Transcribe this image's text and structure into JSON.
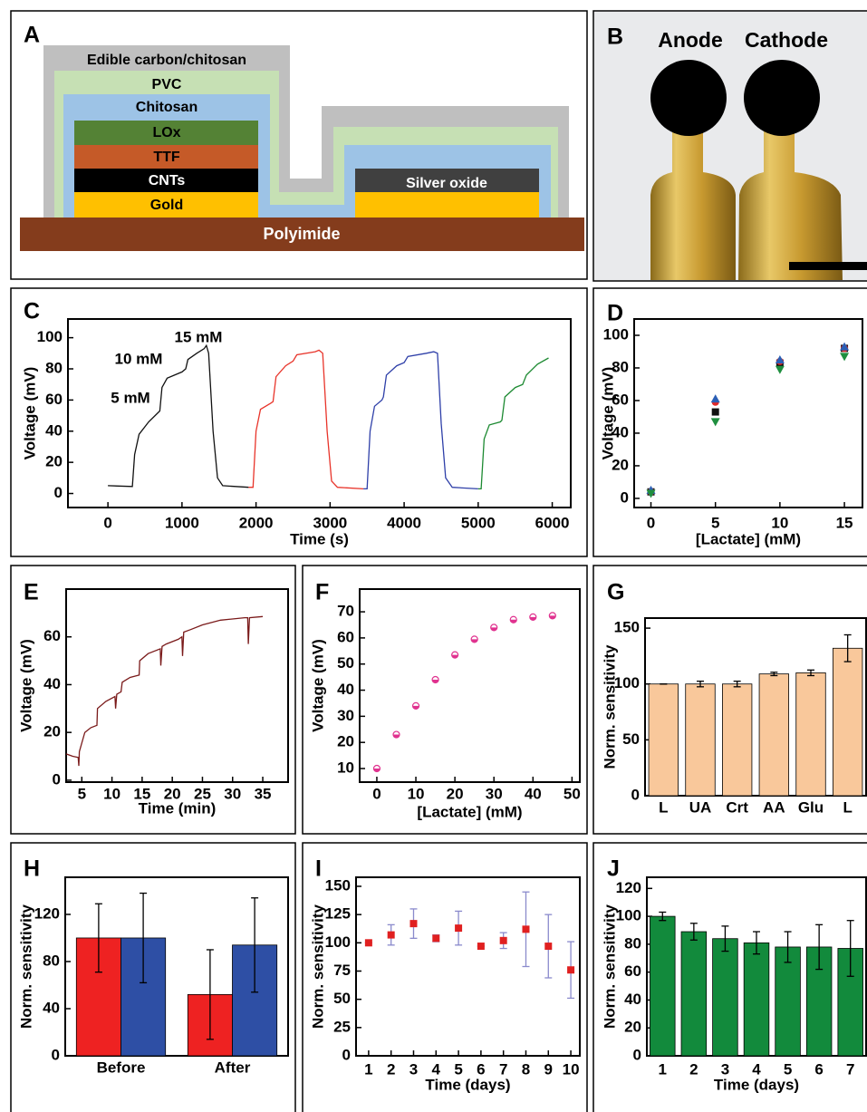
{
  "diagram": {
    "panel": "A",
    "layers": [
      "Edible carbon/chitosan",
      "PVC",
      "Chitosan",
      "LOx",
      "TTF",
      "CNTs",
      "Gold",
      "Silver oxide",
      "Polyimide"
    ]
  },
  "photo": {
    "panel": "B",
    "labels": [
      "Anode",
      "Cathode"
    ]
  },
  "chart_data": [
    {
      "panel": "C",
      "type": "line",
      "xlabel": "Time (s)",
      "ylabel": "Voltage (mV)",
      "xlim": [
        -540,
        6250
      ],
      "ylim": [
        -9,
        112
      ],
      "xticks": [
        0,
        1000,
        2000,
        3000,
        4000,
        5000,
        6000
      ],
      "yticks": [
        0,
        20,
        40,
        60,
        80,
        100
      ],
      "annotations": [
        "5 mM",
        "10 mM",
        "15 mM"
      ],
      "series": [
        {
          "color": "#111111",
          "x": [
            0,
            330,
            360,
            420,
            550,
            680,
            700,
            730,
            800,
            1000,
            1050,
            1080,
            1200,
            1300,
            1330,
            1360,
            1420,
            1480,
            1550,
            1900
          ],
          "values": [
            5,
            4.5,
            25,
            38,
            46,
            52,
            53,
            68,
            74,
            78,
            80,
            86,
            90,
            93,
            95,
            90,
            40,
            10,
            5,
            4
          ]
        },
        {
          "color": "#e8342a",
          "x": [
            1900,
            1960,
            2000,
            2060,
            2200,
            2230,
            2270,
            2400,
            2500,
            2550,
            2800,
            2850,
            2900,
            2960,
            3020,
            3100,
            3450
          ],
          "values": [
            4,
            4,
            40,
            54,
            58,
            59,
            75,
            82,
            85,
            89,
            91,
            92,
            90,
            40,
            8,
            4,
            3
          ]
        },
        {
          "color": "#2e3fa8",
          "x": [
            3450,
            3500,
            3540,
            3600,
            3700,
            3720,
            3760,
            3900,
            4000,
            4050,
            4300,
            4400,
            4450,
            4500,
            4560,
            4650,
            5000
          ],
          "values": [
            3,
            3,
            40,
            56,
            60,
            62,
            76,
            82,
            84,
            88,
            90,
            91,
            90,
            45,
            10,
            4,
            3
          ]
        },
        {
          "color": "#1d8a32",
          "x": [
            5000,
            5040,
            5080,
            5150,
            5300,
            5320,
            5360,
            5500,
            5600,
            5650,
            5800,
            5950
          ],
          "values": [
            3,
            3,
            35,
            44,
            46,
            47,
            62,
            68,
            70,
            76,
            83,
            87
          ]
        }
      ]
    },
    {
      "panel": "D",
      "type": "scatter",
      "xlabel": "[Lactate] (mM)",
      "ylabel": "Voltage (mV)",
      "xlim": [
        -1.3,
        16.4
      ],
      "ylim": [
        -5.6,
        110
      ],
      "xticks": [
        0,
        5,
        10,
        15
      ],
      "yticks": [
        0,
        20,
        40,
        60,
        80,
        100
      ],
      "x": [
        0,
        5,
        10,
        15
      ],
      "series": [
        {
          "color": "#111111",
          "marker": "square",
          "values": [
            4,
            53,
            83,
            92
          ]
        },
        {
          "color": "#e02828",
          "marker": "circle",
          "values": [
            4,
            59,
            84,
            92
          ]
        },
        {
          "color": "#2b5fb5",
          "marker": "triangle-up",
          "values": [
            5,
            61,
            85,
            93
          ]
        },
        {
          "color": "#1f8f3f",
          "marker": "triangle-down",
          "values": [
            3,
            47,
            79,
            87
          ]
        }
      ]
    },
    {
      "panel": "E",
      "type": "line",
      "xlabel": "Time (min)",
      "ylabel": "Voltage (mV)",
      "xlim": [
        2.4,
        39.2
      ],
      "ylim": [
        -0.8,
        80
      ],
      "xticks": [
        5,
        10,
        15,
        20,
        25,
        30,
        35
      ],
      "yticks": [
        0,
        20,
        40,
        60
      ],
      "series": [
        {
          "color": "#7a1a1a",
          "x": [
            2.4,
            3.5,
            4.4,
            4.5,
            4.6,
            5.5,
            6.5,
            7.5,
            7.6,
            9,
            10.5,
            10.6,
            10.8,
            11.5,
            11.7,
            13,
            14.5,
            14.6,
            16,
            18,
            18.1,
            18.3,
            19,
            21,
            21.6,
            21.7,
            21.9,
            23,
            25,
            28,
            32,
            32.5,
            32.6,
            32.8,
            35
          ],
          "values": [
            11,
            10,
            9.5,
            6,
            12,
            20,
            22,
            23,
            30,
            33,
            35,
            30,
            36,
            37,
            41,
            43,
            44,
            50,
            53,
            55,
            48,
            56,
            57,
            59,
            60,
            52,
            62,
            63,
            65,
            67,
            68,
            68,
            57,
            68,
            68.5
          ]
        }
      ]
    },
    {
      "panel": "F",
      "type": "scatter",
      "xlabel": "[Lactate] (mM)",
      "ylabel": "Voltage (mV)",
      "xlim": [
        -4.4,
        52
      ],
      "ylim": [
        4.8,
        78.7
      ],
      "xticks": [
        0,
        10,
        20,
        30,
        40,
        50
      ],
      "yticks": [
        10,
        20,
        30,
        40,
        50,
        60,
        70
      ],
      "x": [
        0,
        5,
        10,
        15,
        20,
        25,
        30,
        35,
        40,
        45
      ],
      "values": [
        10,
        23,
        34,
        44,
        53.5,
        59.5,
        64,
        67,
        68,
        68.5
      ],
      "color": "#e0328f",
      "marker": "half-circle"
    },
    {
      "panel": "G",
      "type": "bar",
      "ylabel": "Norm. sensitivity",
      "ylim": [
        0,
        159
      ],
      "yticks": [
        0,
        50,
        100,
        150
      ],
      "categories": [
        "L",
        "UA",
        "Crt",
        "AA",
        "Glu",
        "L"
      ],
      "values": [
        100,
        100,
        100,
        109,
        110,
        132
      ],
      "errors": [
        0,
        2.5,
        2.5,
        1.5,
        2.5,
        12
      ],
      "color": "#f9c89b"
    },
    {
      "panel": "H",
      "type": "bar",
      "ylabel": "Norm. sensitivity",
      "ylim": [
        0,
        151.5
      ],
      "yticks": [
        0,
        40,
        80,
        120
      ],
      "categories": [
        "Before",
        "After"
      ],
      "series": [
        {
          "color": "#ee2222",
          "values": [
            100,
            52
          ],
          "errors": [
            29,
            38
          ]
        },
        {
          "color": "#2e4fa5",
          "values": [
            100,
            94
          ],
          "errors": [
            38,
            40
          ]
        }
      ]
    },
    {
      "panel": "I",
      "type": "scatter",
      "xlabel": "Time (days)",
      "ylabel": "Norm. sensitivity",
      "xlim": [
        0.44,
        10.4
      ],
      "ylim": [
        0,
        158
      ],
      "xticks": [
        1,
        2,
        3,
        4,
        5,
        6,
        7,
        8,
        9,
        10
      ],
      "yticks": [
        0,
        25,
        50,
        75,
        100,
        125,
        150
      ],
      "x": [
        1,
        2,
        3,
        4,
        5,
        6,
        7,
        8,
        9,
        10
      ],
      "values": [
        100,
        107,
        117,
        104,
        113,
        97,
        102,
        112,
        97,
        76
      ],
      "errors": [
        0,
        9,
        13,
        3,
        15,
        0,
        7,
        33,
        28,
        25
      ],
      "color": "#e02020",
      "marker": "square",
      "error_color": "#8a8acc"
    },
    {
      "panel": "J",
      "type": "bar",
      "xlabel": "Time (days)",
      "ylabel": "Norm. sensitivity",
      "ylim": [
        0,
        128
      ],
      "yticks": [
        0,
        20,
        40,
        60,
        80,
        100,
        120
      ],
      "categories": [
        "1",
        "2",
        "3",
        "4",
        "5",
        "6",
        "7"
      ],
      "values": [
        100,
        89,
        84,
        81,
        78,
        78,
        77
      ],
      "errors": [
        3,
        6,
        9,
        8,
        11,
        16,
        20
      ],
      "color": "#128a3c"
    }
  ]
}
